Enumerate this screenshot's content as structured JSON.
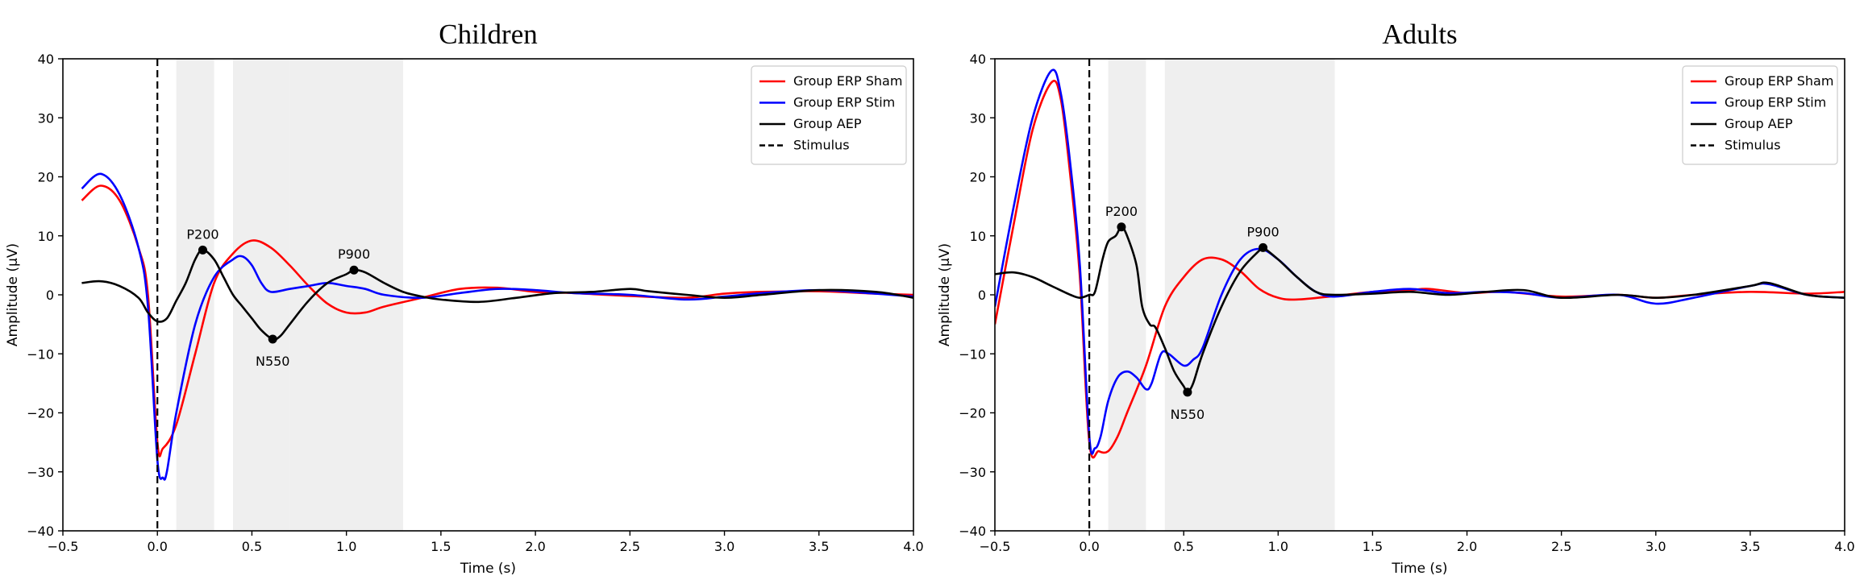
{
  "chart_data": [
    {
      "type": "line",
      "title": "Children",
      "xlabel": "Time (s)",
      "ylabel": "Amplitude (µV)",
      "xlim": [
        -0.5,
        4.0
      ],
      "ylim": [
        -40,
        40
      ],
      "xticks": [
        -0.5,
        0.0,
        0.5,
        1.0,
        1.5,
        2.0,
        2.5,
        3.0,
        3.5,
        4.0
      ],
      "xtick_labels": [
        "−0.5",
        "0.0",
        "0.5",
        "1.0",
        "1.5",
        "2.0",
        "2.5",
        "3.0",
        "3.5",
        "4.0"
      ],
      "yticks": [
        -40,
        -30,
        -20,
        -10,
        0,
        10,
        20,
        30,
        40
      ],
      "ytick_labels": [
        "−40",
        "−30",
        "−20",
        "−10",
        "0",
        "10",
        "20",
        "30",
        "40"
      ],
      "grid": false,
      "legend_position": "top-right",
      "shaded_windows": [
        [
          0.1,
          0.3
        ],
        [
          0.4,
          0.7
        ],
        [
          0.7,
          1.3
        ]
      ],
      "stimulus_line_x": 0.0,
      "series": [
        {
          "name": "Group ERP Sham",
          "color": "#ff0000",
          "style": "solid",
          "points": [
            [
              -0.4,
              16
            ],
            [
              -0.3,
              18.5
            ],
            [
              -0.2,
              16
            ],
            [
              -0.1,
              8
            ],
            [
              -0.05,
              0
            ],
            [
              0.0,
              -25
            ],
            [
              0.03,
              -26
            ],
            [
              0.1,
              -22
            ],
            [
              0.2,
              -10
            ],
            [
              0.3,
              2
            ],
            [
              0.4,
              7
            ],
            [
              0.5,
              9.2
            ],
            [
              0.6,
              8
            ],
            [
              0.7,
              5
            ],
            [
              0.8,
              1.5
            ],
            [
              0.9,
              -1.5
            ],
            [
              1.0,
              -3
            ],
            [
              1.1,
              -3
            ],
            [
              1.2,
              -2
            ],
            [
              1.4,
              -0.5
            ],
            [
              1.6,
              1
            ],
            [
              1.8,
              1.2
            ],
            [
              2.0,
              0.5
            ],
            [
              2.2,
              0.3
            ],
            [
              2.5,
              -0.2
            ],
            [
              2.8,
              -0.5
            ],
            [
              3.0,
              0.2
            ],
            [
              3.2,
              0.5
            ],
            [
              3.5,
              0.6
            ],
            [
              3.8,
              0.2
            ],
            [
              4.0,
              0
            ]
          ]
        },
        {
          "name": "Group ERP Stim",
          "color": "#0000ff",
          "style": "solid",
          "points": [
            [
              -0.4,
              18
            ],
            [
              -0.3,
              20.5
            ],
            [
              -0.2,
              17
            ],
            [
              -0.1,
              8
            ],
            [
              -0.05,
              -2
            ],
            [
              0.0,
              -28
            ],
            [
              0.03,
              -31
            ],
            [
              0.05,
              -30
            ],
            [
              0.1,
              -20
            ],
            [
              0.2,
              -5
            ],
            [
              0.3,
              3
            ],
            [
              0.4,
              6
            ],
            [
              0.45,
              6.5
            ],
            [
              0.5,
              5
            ],
            [
              0.55,
              2
            ],
            [
              0.6,
              0.5
            ],
            [
              0.7,
              1
            ],
            [
              0.8,
              1.5
            ],
            [
              0.9,
              2
            ],
            [
              1.0,
              1.5
            ],
            [
              1.1,
              1
            ],
            [
              1.2,
              0
            ],
            [
              1.4,
              -0.5
            ],
            [
              1.6,
              0.3
            ],
            [
              1.8,
              1
            ],
            [
              2.0,
              0.8
            ],
            [
              2.2,
              0.3
            ],
            [
              2.5,
              0
            ],
            [
              2.8,
              -0.8
            ],
            [
              3.0,
              -0.3
            ],
            [
              3.2,
              0.3
            ],
            [
              3.5,
              0.8
            ],
            [
              3.8,
              0.2
            ],
            [
              4.0,
              -0.3
            ]
          ]
        },
        {
          "name": "Group AEP",
          "color": "#000000",
          "style": "solid",
          "points": [
            [
              -0.4,
              2
            ],
            [
              -0.3,
              2.3
            ],
            [
              -0.2,
              1.5
            ],
            [
              -0.1,
              -0.5
            ],
            [
              -0.05,
              -3
            ],
            [
              0.0,
              -4.5
            ],
            [
              0.05,
              -4
            ],
            [
              0.1,
              -1
            ],
            [
              0.15,
              2
            ],
            [
              0.2,
              6
            ],
            [
              0.24,
              7.6
            ],
            [
              0.3,
              6
            ],
            [
              0.35,
              3
            ],
            [
              0.4,
              0
            ],
            [
              0.45,
              -2
            ],
            [
              0.5,
              -4
            ],
            [
              0.55,
              -6
            ],
            [
              0.61,
              -7.5
            ],
            [
              0.65,
              -7
            ],
            [
              0.7,
              -5
            ],
            [
              0.8,
              -1
            ],
            [
              0.9,
              2
            ],
            [
              1.0,
              3.5
            ],
            [
              1.04,
              4.2
            ],
            [
              1.1,
              3.8
            ],
            [
              1.2,
              2
            ],
            [
              1.3,
              0.5
            ],
            [
              1.4,
              -0.3
            ],
            [
              1.5,
              -0.8
            ],
            [
              1.7,
              -1.2
            ],
            [
              1.9,
              -0.5
            ],
            [
              2.1,
              0.3
            ],
            [
              2.3,
              0.5
            ],
            [
              2.5,
              1
            ],
            [
              2.6,
              0.6
            ],
            [
              2.8,
              0
            ],
            [
              3.0,
              -0.5
            ],
            [
              3.2,
              0
            ],
            [
              3.5,
              0.8
            ],
            [
              3.8,
              0.5
            ],
            [
              4.0,
              -0.5
            ]
          ]
        }
      ],
      "peaks": [
        {
          "label": "P200",
          "x": 0.24,
          "y": 7.6
        },
        {
          "label": "N550",
          "x": 0.61,
          "y": -7.5
        },
        {
          "label": "P900",
          "x": 1.04,
          "y": 4.2
        }
      ],
      "legend": [
        {
          "label": "Group ERP Sham",
          "color": "#ff0000",
          "style": "solid"
        },
        {
          "label": "Group ERP Stim",
          "color": "#0000ff",
          "style": "solid"
        },
        {
          "label": "Group AEP",
          "color": "#000000",
          "style": "solid"
        },
        {
          "label": "Stimulus",
          "color": "#000000",
          "style": "dashed"
        }
      ]
    },
    {
      "type": "line",
      "title": "Adults",
      "xlabel": "Time (s)",
      "ylabel": "Amplitude (µV)",
      "xlim": [
        -0.5,
        4.0
      ],
      "ylim": [
        -40,
        40
      ],
      "xticks": [
        -0.5,
        0.0,
        0.5,
        1.0,
        1.5,
        2.0,
        2.5,
        3.0,
        3.5,
        4.0
      ],
      "xtick_labels": [
        "−0.5",
        "0.0",
        "0.5",
        "1.0",
        "1.5",
        "2.0",
        "2.5",
        "3.0",
        "3.5",
        "4.0"
      ],
      "yticks": [
        -40,
        -30,
        -20,
        -10,
        0,
        10,
        20,
        30,
        40
      ],
      "ytick_labels": [
        "−40",
        "−30",
        "−20",
        "−10",
        "0",
        "10",
        "20",
        "30",
        "40"
      ],
      "grid": false,
      "legend_position": "top-right",
      "shaded_windows": [
        [
          0.1,
          0.3
        ],
        [
          0.4,
          0.7
        ],
        [
          0.7,
          1.3
        ]
      ],
      "stimulus_line_x": 0.0,
      "series": [
        {
          "name": "Group ERP Sham",
          "color": "#ff0000",
          "style": "solid",
          "points": [
            [
              -0.5,
              -5
            ],
            [
              -0.4,
              12
            ],
            [
              -0.3,
              28
            ],
            [
              -0.2,
              36
            ],
            [
              -0.15,
              33
            ],
            [
              -0.1,
              20
            ],
            [
              -0.05,
              3
            ],
            [
              0.0,
              -25
            ],
            [
              0.05,
              -26.5
            ],
            [
              0.1,
              -26.5
            ],
            [
              0.15,
              -24
            ],
            [
              0.2,
              -20
            ],
            [
              0.3,
              -12
            ],
            [
              0.4,
              -2
            ],
            [
              0.5,
              3
            ],
            [
              0.6,
              6
            ],
            [
              0.7,
              6
            ],
            [
              0.8,
              4
            ],
            [
              0.9,
              1
            ],
            [
              1.0,
              -0.5
            ],
            [
              1.1,
              -0.8
            ],
            [
              1.3,
              -0.2
            ],
            [
              1.5,
              0.5
            ],
            [
              1.7,
              0.8
            ],
            [
              1.8,
              1
            ],
            [
              2.0,
              0.3
            ],
            [
              2.2,
              0.5
            ],
            [
              2.5,
              -0.3
            ],
            [
              2.8,
              0
            ],
            [
              3.0,
              -0.5
            ],
            [
              3.2,
              0
            ],
            [
              3.5,
              0.5
            ],
            [
              3.8,
              0.2
            ],
            [
              4.0,
              0.5
            ]
          ]
        },
        {
          "name": "Group ERP Stim",
          "color": "#0000ff",
          "style": "solid",
          "points": [
            [
              -0.5,
              -2
            ],
            [
              -0.4,
              15
            ],
            [
              -0.3,
              30
            ],
            [
              -0.2,
              38
            ],
            [
              -0.15,
              34
            ],
            [
              -0.1,
              22
            ],
            [
              -0.05,
              5
            ],
            [
              0.0,
              -24
            ],
            [
              0.03,
              -26
            ],
            [
              0.06,
              -24
            ],
            [
              0.1,
              -18
            ],
            [
              0.15,
              -14
            ],
            [
              0.2,
              -13
            ],
            [
              0.25,
              -14
            ],
            [
              0.3,
              -16
            ],
            [
              0.33,
              -15
            ],
            [
              0.38,
              -10
            ],
            [
              0.42,
              -10
            ],
            [
              0.5,
              -12
            ],
            [
              0.55,
              -11
            ],
            [
              0.6,
              -9
            ],
            [
              0.7,
              0
            ],
            [
              0.8,
              6
            ],
            [
              0.9,
              7.8
            ],
            [
              1.0,
              6
            ],
            [
              1.1,
              3
            ],
            [
              1.2,
              0.5
            ],
            [
              1.3,
              -0.3
            ],
            [
              1.5,
              0.5
            ],
            [
              1.7,
              1
            ],
            [
              1.9,
              0.3
            ],
            [
              2.1,
              0.5
            ],
            [
              2.3,
              0.3
            ],
            [
              2.5,
              -0.5
            ],
            [
              2.8,
              0
            ],
            [
              3.0,
              -1.5
            ],
            [
              3.2,
              -0.5
            ],
            [
              3.5,
              1.5
            ],
            [
              3.6,
              1.8
            ],
            [
              3.8,
              0
            ],
            [
              4.0,
              -0.5
            ]
          ]
        },
        {
          "name": "Group AEP",
          "color": "#000000",
          "style": "solid",
          "points": [
            [
              -0.5,
              3.5
            ],
            [
              -0.4,
              3.8
            ],
            [
              -0.3,
              3
            ],
            [
              -0.2,
              1.5
            ],
            [
              -0.1,
              0
            ],
            [
              -0.05,
              -0.5
            ],
            [
              0.0,
              0
            ],
            [
              0.03,
              0.5
            ],
            [
              0.07,
              6
            ],
            [
              0.1,
              9
            ],
            [
              0.14,
              10
            ],
            [
              0.17,
              11.5
            ],
            [
              0.2,
              10
            ],
            [
              0.25,
              5
            ],
            [
              0.28,
              -2
            ],
            [
              0.32,
              -5
            ],
            [
              0.35,
              -5.5
            ],
            [
              0.4,
              -9
            ],
            [
              0.45,
              -13
            ],
            [
              0.5,
              -15.5
            ],
            [
              0.52,
              -16.5
            ],
            [
              0.55,
              -15
            ],
            [
              0.6,
              -10
            ],
            [
              0.7,
              -2
            ],
            [
              0.8,
              4
            ],
            [
              0.9,
              7.5
            ],
            [
              0.92,
              8
            ],
            [
              1.0,
              6
            ],
            [
              1.1,
              3
            ],
            [
              1.2,
              0.5
            ],
            [
              1.3,
              0
            ],
            [
              1.5,
              0.2
            ],
            [
              1.7,
              0.5
            ],
            [
              1.9,
              0
            ],
            [
              2.1,
              0.5
            ],
            [
              2.3,
              0.8
            ],
            [
              2.5,
              -0.5
            ],
            [
              2.8,
              0
            ],
            [
              3.0,
              -0.5
            ],
            [
              3.2,
              0
            ],
            [
              3.5,
              1.5
            ],
            [
              3.6,
              2
            ],
            [
              3.8,
              0
            ],
            [
              4.0,
              -0.5
            ]
          ]
        }
      ],
      "peaks": [
        {
          "label": "P200",
          "x": 0.17,
          "y": 11.5
        },
        {
          "label": "N550",
          "x": 0.52,
          "y": -16.5
        },
        {
          "label": "P900",
          "x": 0.92,
          "y": 8
        }
      ],
      "legend": [
        {
          "label": "Group ERP Sham",
          "color": "#ff0000",
          "style": "solid"
        },
        {
          "label": "Group ERP Stim",
          "color": "#0000ff",
          "style": "solid"
        },
        {
          "label": "Group AEP",
          "color": "#000000",
          "style": "solid"
        },
        {
          "label": "Stimulus",
          "color": "#000000",
          "style": "dashed"
        }
      ]
    }
  ]
}
